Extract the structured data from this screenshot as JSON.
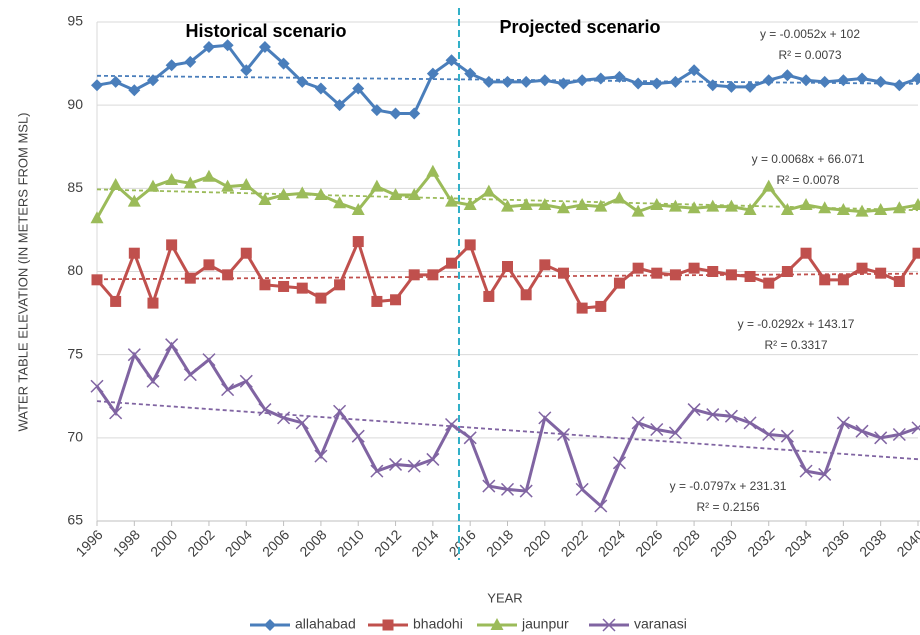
{
  "chart_data": {
    "type": "line",
    "x_label": "YEAR",
    "y_label": "WATER TABLE  ELEVATION (IN METERS FROM MSL)",
    "x": [
      1996,
      1997,
      1998,
      1999,
      2000,
      2001,
      2002,
      2003,
      2004,
      2005,
      2006,
      2007,
      2008,
      2009,
      2010,
      2011,
      2012,
      2013,
      2014,
      2015,
      2016,
      2017,
      2018,
      2019,
      2020,
      2021,
      2022,
      2023,
      2024,
      2025,
      2026,
      2027,
      2028,
      2029,
      2030,
      2031,
      2032,
      2033,
      2034,
      2035,
      2036,
      2037,
      2038,
      2039,
      2040
    ],
    "xlim": [
      1996,
      2040
    ],
    "xticks": [
      1996,
      1998,
      2000,
      2002,
      2004,
      2006,
      2008,
      2010,
      2012,
      2014,
      2016,
      2018,
      2020,
      2022,
      2024,
      2026,
      2028,
      2030,
      2032,
      2034,
      2036,
      2038,
      2040
    ],
    "ylim": [
      65,
      95
    ],
    "yticks": [
      65,
      70,
      75,
      80,
      85,
      90,
      95
    ],
    "divider_x": 2015.4,
    "scenario_labels": [
      "Historical  scenario",
      "Projected scenario"
    ],
    "series": [
      {
        "name": "allahabad",
        "color": "#4a7ebb",
        "marker": "diamond",
        "trend_label": [
          "y = -0.0052x + 102",
          "R² = 0.0073"
        ],
        "values": [
          91.2,
          91.4,
          90.9,
          91.5,
          92.4,
          92.6,
          93.5,
          93.6,
          92.1,
          93.5,
          92.5,
          91.4,
          91.0,
          90.0,
          91.0,
          89.7,
          89.5,
          89.5,
          91.9,
          92.7,
          91.9,
          91.4,
          91.4,
          91.4,
          91.5,
          91.3,
          91.5,
          91.6,
          91.7,
          91.3,
          91.3,
          91.4,
          92.1,
          91.2,
          91.1,
          91.1,
          91.5,
          91.8,
          91.5,
          91.4,
          91.5,
          91.6,
          91.4,
          91.2,
          91.6
        ]
      },
      {
        "name": "bhadohi",
        "color": "#c0504d",
        "marker": "square",
        "trend_label": [
          "y = 0.0068x + 66.071",
          "R² = 0.0078"
        ],
        "values": [
          79.5,
          78.2,
          81.1,
          78.1,
          81.6,
          79.6,
          80.4,
          79.8,
          81.1,
          79.2,
          79.1,
          79.0,
          78.4,
          79.2,
          81.8,
          78.2,
          78.3,
          79.8,
          79.8,
          80.5,
          81.6,
          78.5,
          80.3,
          78.6,
          80.4,
          79.9,
          77.8,
          77.9,
          79.3,
          80.2,
          79.9,
          79.8,
          80.2,
          80.0,
          79.8,
          79.7,
          79.3,
          80.0,
          81.1,
          79.5,
          79.5,
          80.2,
          79.9,
          79.4,
          81.1
        ]
      },
      {
        "name": "jaunpur",
        "color": "#9bbb59",
        "marker": "triangle",
        "trend_label": [
          "y = -0.0292x + 143.17",
          "R² = 0.3317"
        ],
        "values": [
          83.2,
          85.2,
          84.2,
          85.1,
          85.5,
          85.3,
          85.7,
          85.1,
          85.2,
          84.3,
          84.6,
          84.7,
          84.6,
          84.1,
          83.7,
          85.1,
          84.6,
          84.6,
          86.0,
          84.2,
          84.0,
          84.8,
          83.9,
          84.0,
          84.0,
          83.8,
          84.0,
          83.9,
          84.4,
          83.6,
          84.0,
          83.9,
          83.8,
          83.9,
          83.9,
          83.7,
          85.1,
          83.7,
          84.0,
          83.8,
          83.7,
          83.6,
          83.7,
          83.8,
          84.0
        ]
      },
      {
        "name": "varanasi",
        "color": "#8064a2",
        "marker": "x",
        "trend_label": [
          "y = -0.0797x + 231.31",
          "R² = 0.2156"
        ],
        "values": [
          73.1,
          71.5,
          75.0,
          73.4,
          75.6,
          73.8,
          74.7,
          72.9,
          73.4,
          71.7,
          71.2,
          70.9,
          68.9,
          71.6,
          70.1,
          68.0,
          68.4,
          68.3,
          68.7,
          70.8,
          70.0,
          67.1,
          66.9,
          66.8,
          71.2,
          70.2,
          66.9,
          65.9,
          68.5,
          70.9,
          70.5,
          70.3,
          71.7,
          71.4,
          71.3,
          70.9,
          70.2,
          70.1,
          68.0,
          67.8,
          70.9,
          70.4,
          70.0,
          70.2,
          70.6
        ]
      }
    ]
  }
}
